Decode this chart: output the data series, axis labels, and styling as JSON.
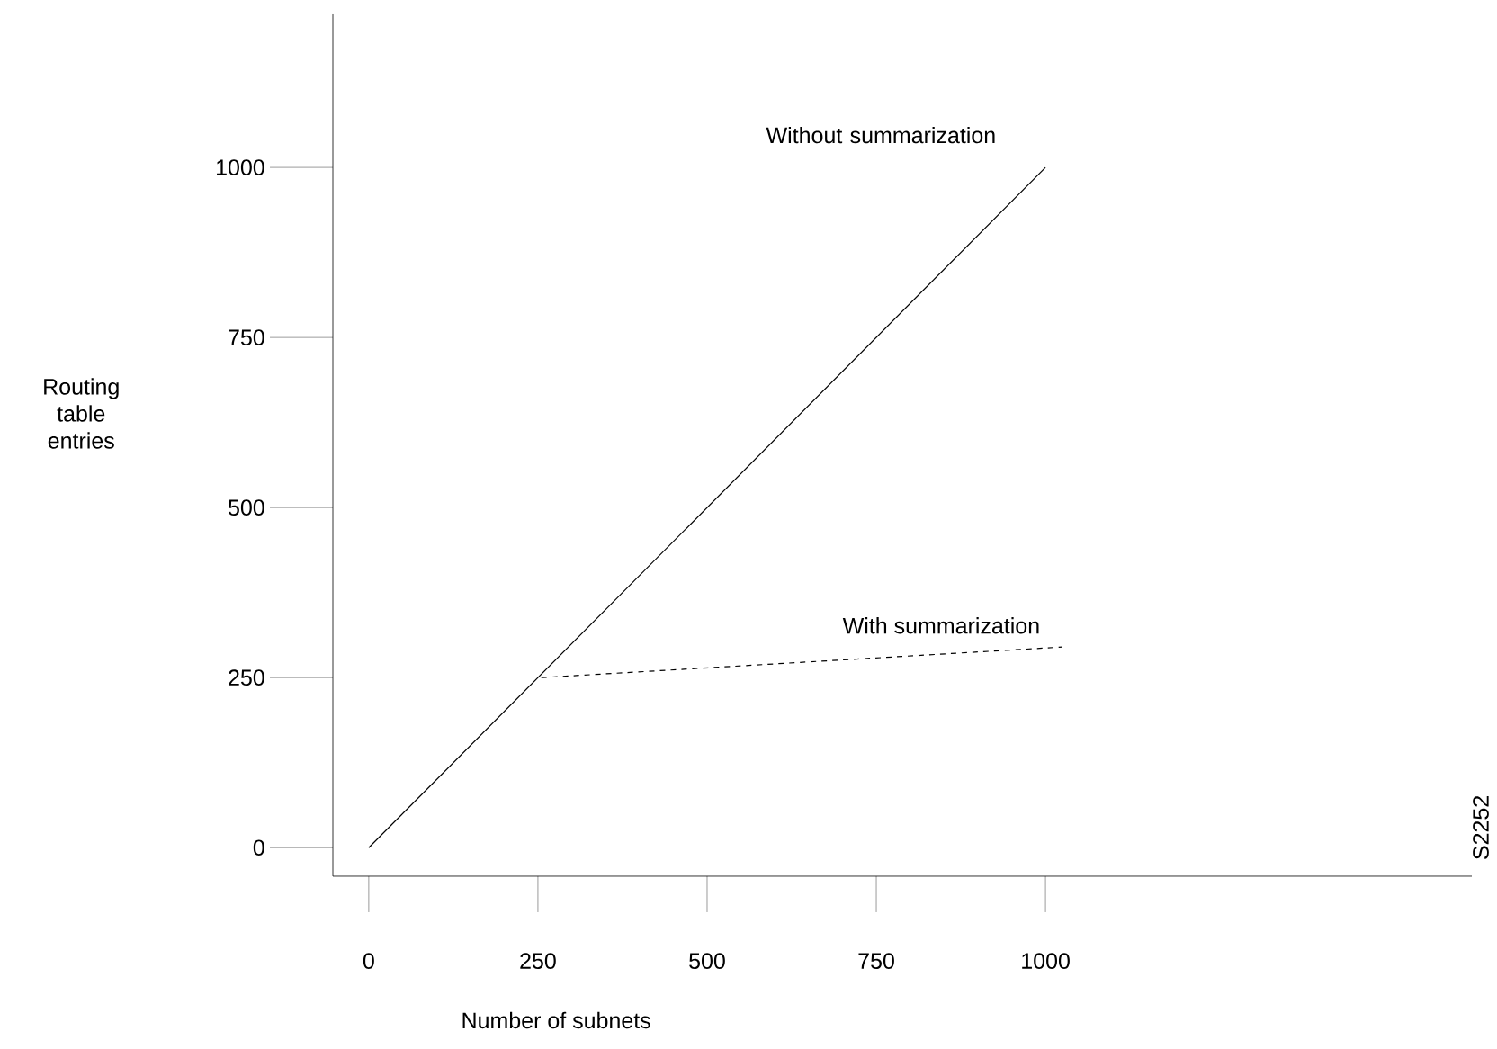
{
  "chart_data": {
    "type": "line",
    "xlabel": "Number of subnets",
    "ylabel": "Routing table entries",
    "xlim": [
      -53,
      1630
    ],
    "ylim": [
      -42,
      1225
    ],
    "xticks": [
      0,
      250,
      500,
      750,
      1000
    ],
    "yticks": [
      0,
      250,
      500,
      750,
      1000
    ],
    "grid": false,
    "legend": false,
    "marker": "none",
    "series": [
      {
        "name": "Without summarization",
        "color": "#000000",
        "line_style": "solid",
        "x": [
          0,
          1000
        ],
        "values": [
          0,
          1000
        ]
      },
      {
        "name": "With summarization",
        "color": "#000000",
        "line_style": "dashed",
        "x": [
          255,
          1025
        ],
        "values": [
          250,
          295
        ]
      }
    ],
    "annotations": [
      "S2252"
    ]
  }
}
